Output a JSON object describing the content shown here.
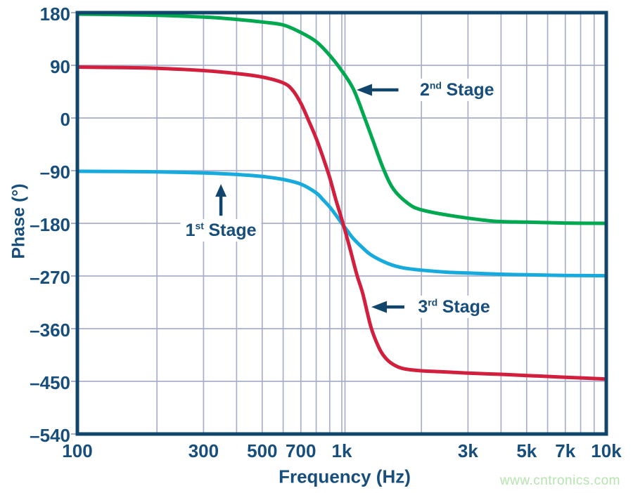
{
  "colors": {
    "axis": "#11456b",
    "text": "#174e7b",
    "grid": "#a9aecb",
    "watermark": "#b5e4ae",
    "background": "#ffffff"
  },
  "watermark": "www.cntronics.com",
  "chart_data": {
    "type": "line",
    "title": "",
    "xlabel": "Frequency (Hz)",
    "ylabel": "Phase (°)",
    "x_scale": "log",
    "x_range": [
      100,
      10000
    ],
    "y_range": [
      -540,
      180
    ],
    "grid": true,
    "legend_position": "none",
    "y_ticks": [
      {
        "value": 180,
        "label": "180"
      },
      {
        "value": 90,
        "label": "90"
      },
      {
        "value": 0,
        "label": "0"
      },
      {
        "value": -90,
        "label": "–90"
      },
      {
        "value": -180,
        "label": "–180"
      },
      {
        "value": -270,
        "label": "–270"
      },
      {
        "value": -360,
        "label": "–360"
      },
      {
        "value": -450,
        "label": "–450"
      },
      {
        "value": -540,
        "label": "–540"
      }
    ],
    "x_ticks": [
      {
        "value": 100,
        "label": "100"
      },
      {
        "value": 300,
        "label": "300"
      },
      {
        "value": 500,
        "label": "500"
      },
      {
        "value": 700,
        "label": "700"
      },
      {
        "value": 1000,
        "label": "1k"
      },
      {
        "value": 3000,
        "label": "3k"
      },
      {
        "value": 5000,
        "label": "5k"
      },
      {
        "value": 7000,
        "label": "7k"
      },
      {
        "value": 10000,
        "label": "10k"
      }
    ],
    "x_grid_minor": [
      200,
      300,
      400,
      500,
      600,
      700,
      800,
      900,
      2000,
      3000,
      4000,
      5000,
      6000,
      7000,
      8000,
      9000
    ],
    "x_grid_major": [
      1000
    ],
    "series": [
      {
        "name": "1st Stage",
        "color": "#17abdd",
        "points": [
          [
            100,
            -91
          ],
          [
            150,
            -91.5
          ],
          [
            200,
            -92
          ],
          [
            300,
            -94
          ],
          [
            400,
            -96.5
          ],
          [
            500,
            -100
          ],
          [
            600,
            -105
          ],
          [
            700,
            -113
          ],
          [
            800,
            -128
          ],
          [
            850,
            -140
          ],
          [
            900,
            -152
          ],
          [
            950,
            -166
          ],
          [
            1000,
            -180
          ],
          [
            1050,
            -193
          ],
          [
            1100,
            -205
          ],
          [
            1200,
            -222
          ],
          [
            1300,
            -235
          ],
          [
            1500,
            -249
          ],
          [
            1700,
            -256
          ],
          [
            2000,
            -260
          ],
          [
            2500,
            -263.5
          ],
          [
            3000,
            -265
          ],
          [
            4000,
            -267
          ],
          [
            5000,
            -268
          ],
          [
            7000,
            -269
          ],
          [
            10000,
            -269.5
          ]
        ]
      },
      {
        "name": "2nd Stage",
        "color": "#00a94f",
        "points": [
          [
            100,
            177.5
          ],
          [
            150,
            176.5
          ],
          [
            200,
            175.5
          ],
          [
            300,
            172.5
          ],
          [
            400,
            168.5
          ],
          [
            500,
            164
          ],
          [
            600,
            159
          ],
          [
            700,
            146
          ],
          [
            800,
            130.5
          ],
          [
            900,
            107
          ],
          [
            1010,
            78
          ],
          [
            1110,
            48
          ],
          [
            1220,
            0
          ],
          [
            1310,
            -38
          ],
          [
            1440,
            -88
          ],
          [
            1570,
            -122
          ],
          [
            1780,
            -146
          ],
          [
            2000,
            -157
          ],
          [
            2600,
            -167
          ],
          [
            3700,
            -176
          ],
          [
            5000,
            -178
          ],
          [
            7000,
            -179.5
          ],
          [
            10000,
            -180
          ]
        ]
      },
      {
        "name": "3rd Stage",
        "color": "#d21f3d",
        "points": [
          [
            100,
            87
          ],
          [
            150,
            86
          ],
          [
            200,
            85
          ],
          [
            300,
            81
          ],
          [
            400,
            76
          ],
          [
            500,
            70
          ],
          [
            600,
            60
          ],
          [
            650,
            48
          ],
          [
            700,
            25
          ],
          [
            750,
            -5
          ],
          [
            800,
            -35
          ],
          [
            850,
            -68
          ],
          [
            900,
            -102
          ],
          [
            950,
            -140
          ],
          [
            1010,
            -180
          ],
          [
            1075,
            -224
          ],
          [
            1140,
            -268
          ],
          [
            1200,
            -300
          ],
          [
            1290,
            -358
          ],
          [
            1380,
            -392
          ],
          [
            1450,
            -408
          ],
          [
            1550,
            -420
          ],
          [
            1700,
            -428
          ],
          [
            2000,
            -432
          ],
          [
            2500,
            -434
          ],
          [
            3000,
            -436
          ],
          [
            4000,
            -438
          ],
          [
            5000,
            -440
          ],
          [
            7000,
            -443
          ],
          [
            10000,
            -446
          ]
        ]
      }
    ],
    "annotations": [
      {
        "num": "1",
        "sup": "st",
        "rest": "Stage",
        "full": "1st Stage",
        "arrow": {
          "dir": "up",
          "tip_f": 349,
          "tip_phase": -113,
          "tail_f": 349,
          "tail_phase": -167
        },
        "label": {
          "f": 349,
          "phase": -192,
          "align": "center"
        }
      },
      {
        "num": "2",
        "sup": "nd",
        "rest": "Stage",
        "full": "2nd Stage",
        "arrow": {
          "dir": "left",
          "tip_f": 1137,
          "tip_phase": 48,
          "tail_f": 1637,
          "tail_phase": 48
        },
        "label": {
          "f": 1890,
          "phase": 48,
          "align": "left"
        }
      },
      {
        "num": "3",
        "sup": "rd",
        "rest": "Stage",
        "full": "3rd Stage",
        "arrow": {
          "dir": "left",
          "tip_f": 1293,
          "tip_phase": -323,
          "tail_f": 1724,
          "tail_phase": -323
        },
        "label": {
          "f": 1860,
          "phase": -323,
          "align": "left"
        }
      }
    ]
  }
}
